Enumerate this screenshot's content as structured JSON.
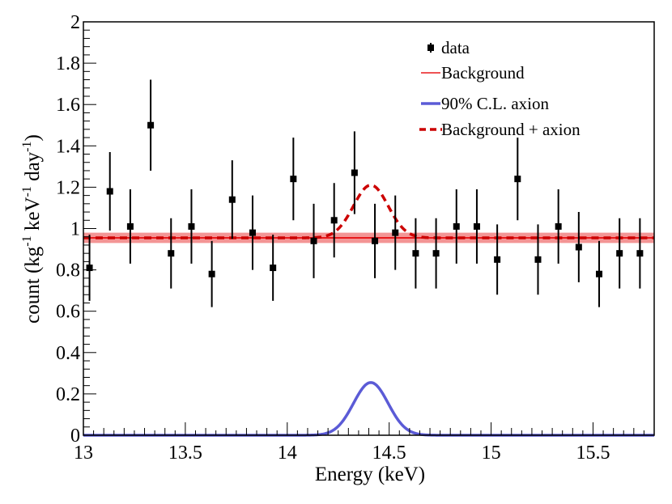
{
  "chart_data": {
    "type": "scatter",
    "title": "",
    "xlabel": "Energy (keV)",
    "ylabel": {
      "text": "count (kg",
      "sup1": "-1",
      "mid": " keV",
      "sup2": "-1",
      "mid2": " day",
      "sup3": "-1",
      "end": ")"
    },
    "xlim": [
      13.0,
      15.8
    ],
    "ylim": [
      0,
      2
    ],
    "x_ticks": [
      13,
      13.5,
      14,
      14.5,
      15,
      15.5
    ],
    "x_tick_labels": [
      "13",
      "13.5",
      "14",
      "14.5",
      "15",
      "15.5"
    ],
    "y_ticks": [
      0,
      0.2,
      0.4,
      0.6,
      0.8,
      1,
      1.2,
      1.4,
      1.6,
      1.8,
      2
    ],
    "y_tick_labels": [
      "0",
      "0.2",
      "0.4",
      "0.6",
      "0.8",
      "1",
      "1.2",
      "1.4",
      "1.6",
      "1.8",
      "2"
    ],
    "series": [
      {
        "name": "data",
        "kind": "points_with_errors",
        "color": "#000000",
        "x": [
          13.03,
          13.13,
          13.23,
          13.33,
          13.43,
          13.53,
          13.63,
          13.73,
          13.83,
          13.93,
          14.03,
          14.13,
          14.23,
          14.33,
          14.43,
          14.53,
          14.63,
          14.73,
          14.83,
          14.93,
          15.03,
          15.13,
          15.23,
          15.33,
          15.43,
          15.53,
          15.63,
          15.73
        ],
        "y": [
          0.81,
          1.18,
          1.01,
          1.5,
          0.88,
          1.01,
          0.78,
          1.14,
          0.98,
          0.81,
          1.24,
          0.94,
          1.04,
          1.27,
          0.94,
          0.98,
          0.88,
          0.88,
          1.01,
          1.01,
          0.85,
          1.24,
          0.85,
          1.01,
          0.91,
          0.78,
          0.88,
          0.88
        ],
        "err": [
          0.16,
          0.19,
          0.18,
          0.22,
          0.17,
          0.18,
          0.16,
          0.19,
          0.18,
          0.16,
          0.2,
          0.18,
          0.18,
          0.2,
          0.18,
          0.18,
          0.17,
          0.17,
          0.18,
          0.18,
          0.17,
          0.2,
          0.17,
          0.18,
          0.17,
          0.16,
          0.17,
          0.17
        ]
      },
      {
        "name": "Background",
        "kind": "flat_band",
        "color": "#e8181b",
        "band_color": "#f07a7a",
        "value": 0.955,
        "band": [
          0.93,
          0.98
        ]
      },
      {
        "name": "90% C.L. axion",
        "kind": "gaussian",
        "color": "#5b5bd6",
        "baseline": 0,
        "amplitude": 0.255,
        "mean": 14.41,
        "sigma": 0.085
      },
      {
        "name": "Background + axion",
        "kind": "gaussian_dashed",
        "color": "#cc0000",
        "baseline": 0.955,
        "amplitude": 0.255,
        "mean": 14.41,
        "sigma": 0.085
      }
    ],
    "legend": {
      "position": "top-right",
      "entries": [
        "data",
        "Background",
        "90% C.L. axion",
        "Background + axion"
      ]
    }
  }
}
